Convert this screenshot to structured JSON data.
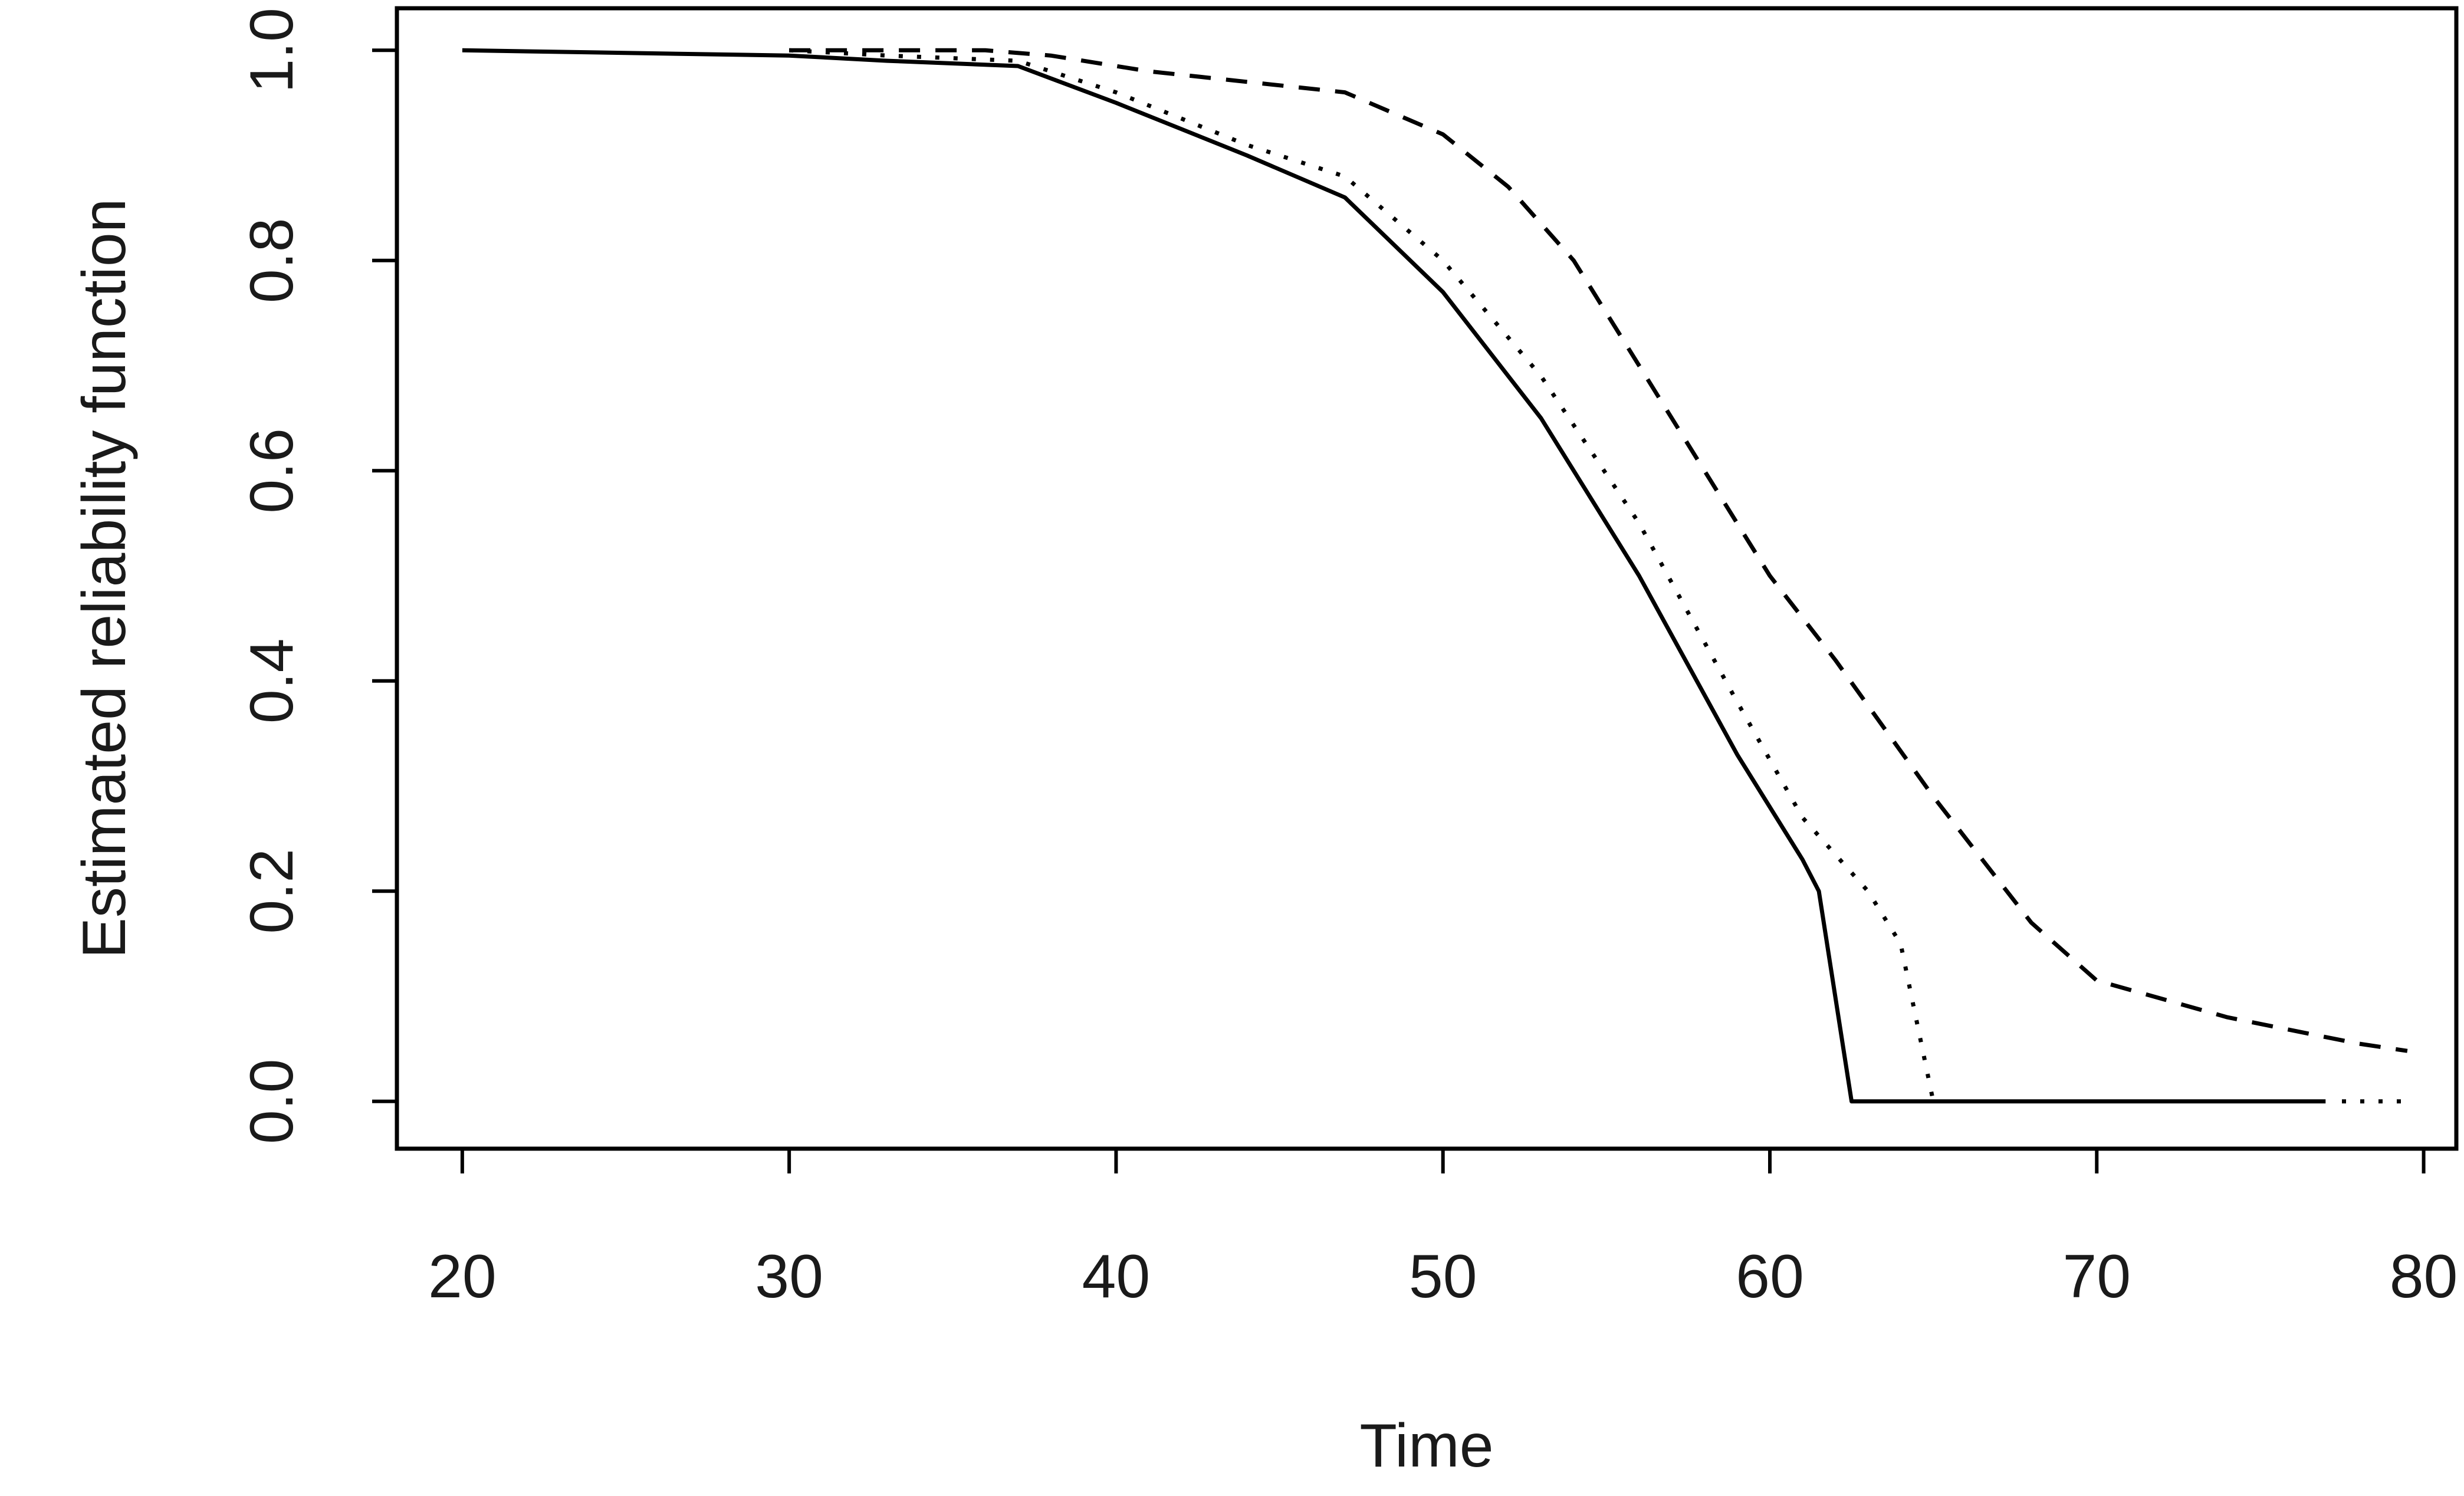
{
  "chart_data": {
    "type": "line",
    "title": "",
    "xlabel": "Time",
    "ylabel": "Estimated reliability function",
    "xlim": [
      18,
      81
    ],
    "ylim": [
      -0.045,
      1.04
    ],
    "xticks": [
      20,
      30,
      40,
      50,
      60,
      70,
      80
    ],
    "yticks": [
      0.0,
      0.2,
      0.4,
      0.6,
      0.8,
      1.0
    ],
    "xtick_labels": [
      "20",
      "30",
      "40",
      "50",
      "60",
      "70",
      "80"
    ],
    "ytick_labels": [
      "0.0",
      "0.2",
      "0.4",
      "0.6",
      "0.8",
      "1.0"
    ],
    "grid": false,
    "legend": false,
    "series": [
      {
        "style": "solid",
        "x": [
          20,
          30,
          33,
          37,
          40,
          44,
          47,
          50,
          53,
          56,
          59,
          61,
          61.5,
          62.5,
          70,
          77
        ],
        "y": [
          1.0,
          0.995,
          0.99,
          0.985,
          0.95,
          0.9,
          0.86,
          0.77,
          0.65,
          0.5,
          0.33,
          0.23,
          0.2,
          0.0,
          0.0,
          0.0
        ]
      },
      {
        "style": "dotted",
        "x": [
          30,
          33,
          37,
          40,
          44,
          47,
          50,
          53,
          56,
          59,
          61,
          63,
          64,
          65
        ],
        "y": [
          1.0,
          0.995,
          0.99,
          0.96,
          0.91,
          0.88,
          0.8,
          0.69,
          0.55,
          0.38,
          0.27,
          0.2,
          0.15,
          0.0
        ]
      },
      {
        "style": "dotted",
        "x": [
          77.5,
          79.5
        ],
        "y": [
          0.0,
          0.0
        ]
      },
      {
        "style": "dashed",
        "x": [
          30,
          33,
          36,
          38,
          41,
          44,
          47,
          50,
          52,
          54,
          56,
          58,
          60,
          62,
          65,
          68,
          70,
          74,
          78,
          79.5
        ],
        "y": [
          1.0,
          1.0,
          1.0,
          0.995,
          0.98,
          0.97,
          0.96,
          0.92,
          0.87,
          0.8,
          0.7,
          0.6,
          0.5,
          0.42,
          0.29,
          0.17,
          0.115,
          0.08,
          0.055,
          0.048
        ]
      }
    ]
  }
}
